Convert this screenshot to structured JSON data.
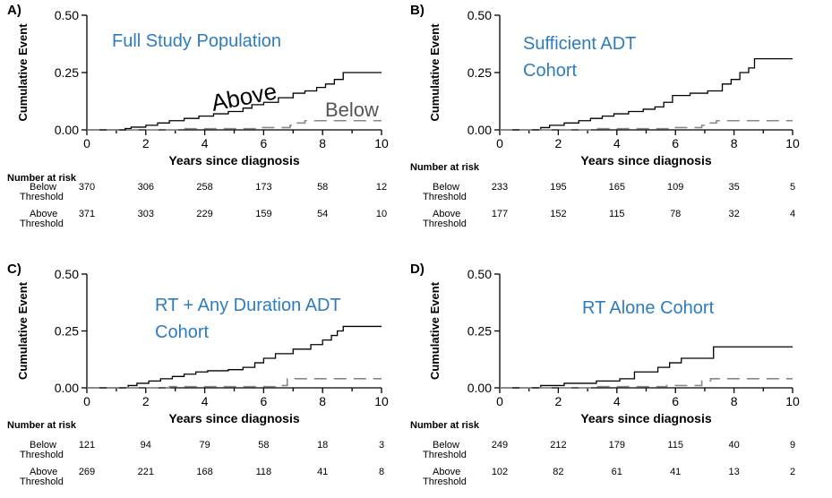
{
  "chart_data": [
    {
      "type": "line",
      "panel": "A)",
      "title": "Full Study Population",
      "xlabel": "Years since diagnosis",
      "ylabel": "Cumulative Event",
      "xlim": [
        0,
        10
      ],
      "ylim": [
        0,
        0.5
      ],
      "xticks": [
        "0",
        "2",
        "4",
        "6",
        "8",
        "10"
      ],
      "yticks": [
        "0.00",
        "0.25",
        "0.50"
      ],
      "annotations": [
        "Above",
        "Below"
      ],
      "series": [
        {
          "name": "Above",
          "x": [
            0,
            1.3,
            1.5,
            2.0,
            2.4,
            2.8,
            3.3,
            3.8,
            4.3,
            4.8,
            5.3,
            5.6,
            6.0,
            6.5,
            7.0,
            7.4,
            7.8,
            8.1,
            8.4,
            8.7,
            10
          ],
          "y": [
            0,
            0.006,
            0.012,
            0.02,
            0.03,
            0.04,
            0.05,
            0.06,
            0.07,
            0.08,
            0.095,
            0.11,
            0.12,
            0.14,
            0.16,
            0.17,
            0.185,
            0.2,
            0.22,
            0.25,
            0.25
          ]
        },
        {
          "name": "Below",
          "x": [
            0,
            3.2,
            5.8,
            6.9,
            7.1,
            7.4,
            10
          ],
          "y": [
            0,
            0.005,
            0.01,
            0.02,
            0.03,
            0.04,
            0.04
          ]
        }
      ],
      "risk_header": "Number at risk",
      "risk_table": [
        {
          "label": [
            "Below",
            "Threshold"
          ],
          "values": [
            "370",
            "306",
            "258",
            "173",
            "58",
            "12"
          ]
        },
        {
          "label": [
            "Above",
            "Threshold"
          ],
          "values": [
            "371",
            "303",
            "229",
            "159",
            "54",
            "10"
          ]
        }
      ]
    },
    {
      "type": "line",
      "panel": "B)",
      "title": "Sufficient ADT Cohort",
      "xlabel": "Years since diagnosis",
      "ylabel": "Cumulative Event",
      "xlim": [
        0,
        10
      ],
      "ylim": [
        0,
        0.5
      ],
      "xticks": [
        "0",
        "2",
        "4",
        "6",
        "8",
        "10"
      ],
      "yticks": [
        "0.00",
        "0.25",
        "0.50"
      ],
      "series": [
        {
          "name": "Above",
          "x": [
            0,
            1.4,
            1.7,
            2.2,
            2.7,
            3.1,
            3.5,
            3.9,
            4.4,
            4.9,
            5.3,
            5.6,
            5.9,
            6.5,
            7.1,
            7.6,
            7.9,
            8.2,
            8.5,
            8.7,
            10
          ],
          "y": [
            0,
            0.01,
            0.02,
            0.03,
            0.04,
            0.05,
            0.06,
            0.07,
            0.08,
            0.09,
            0.1,
            0.12,
            0.15,
            0.16,
            0.17,
            0.2,
            0.22,
            0.25,
            0.27,
            0.31,
            0.31
          ]
        },
        {
          "name": "Below",
          "x": [
            0,
            3.2,
            5.8,
            6.9,
            7.1,
            7.4,
            10
          ],
          "y": [
            0,
            0.005,
            0.01,
            0.02,
            0.03,
            0.04,
            0.04
          ]
        }
      ],
      "risk_header": "Number at risk",
      "risk_table": [
        {
          "label": [
            "Below",
            "Threshold"
          ],
          "values": [
            "233",
            "195",
            "165",
            "109",
            "35",
            "5"
          ]
        },
        {
          "label": [
            "Above",
            "Threshold"
          ],
          "values": [
            "177",
            "152",
            "115",
            "78",
            "32",
            "4"
          ]
        }
      ]
    },
    {
      "type": "line",
      "panel": "C)",
      "title": "RT + Any Duration ADT Cohort",
      "xlabel": "Years since diagnosis",
      "ylabel": "Cumulative Event",
      "xlim": [
        0,
        10
      ],
      "ylim": [
        0,
        0.5
      ],
      "xticks": [
        "0",
        "2",
        "4",
        "6",
        "8",
        "10"
      ],
      "yticks": [
        "0.00",
        "0.25",
        "0.50"
      ],
      "series": [
        {
          "name": "Above",
          "x": [
            0,
            1.4,
            1.7,
            2.1,
            2.5,
            2.9,
            3.3,
            3.7,
            4.1,
            4.8,
            5.3,
            5.7,
            6.0,
            6.4,
            7.0,
            7.6,
            8.0,
            8.3,
            8.5,
            8.7,
            10
          ],
          "y": [
            0,
            0.01,
            0.02,
            0.03,
            0.04,
            0.05,
            0.06,
            0.07,
            0.075,
            0.08,
            0.09,
            0.11,
            0.13,
            0.15,
            0.17,
            0.19,
            0.21,
            0.23,
            0.25,
            0.27,
            0.27
          ]
        },
        {
          "name": "Below",
          "x": [
            0,
            2.8,
            6.6,
            6.8,
            10
          ],
          "y": [
            0,
            0.005,
            0.01,
            0.04,
            0.04
          ]
        }
      ],
      "risk_header": "Number at risk",
      "risk_table": [
        {
          "label": [
            "Below",
            "Threshold"
          ],
          "values": [
            "121",
            "94",
            "79",
            "58",
            "18",
            "3"
          ]
        },
        {
          "label": [
            "Above",
            "Threshold"
          ],
          "values": [
            "269",
            "221",
            "168",
            "118",
            "41",
            "8"
          ]
        }
      ]
    },
    {
      "type": "line",
      "panel": "D)",
      "title": "RT Alone Cohort",
      "xlabel": "Years since diagnosis",
      "ylabel": "Cumulative Event",
      "xlim": [
        0,
        10
      ],
      "ylim": [
        0,
        0.5
      ],
      "xticks": [
        "0",
        "2",
        "4",
        "6",
        "8",
        "10"
      ],
      "yticks": [
        "0.00",
        "0.25",
        "0.50"
      ],
      "series": [
        {
          "name": "Above",
          "x": [
            0,
            1.4,
            2.2,
            3.3,
            4.1,
            4.6,
            5.4,
            5.8,
            6.2,
            7.3,
            10
          ],
          "y": [
            0,
            0.01,
            0.02,
            0.03,
            0.04,
            0.07,
            0.09,
            0.11,
            0.13,
            0.18,
            0.18
          ]
        },
        {
          "name": "Below",
          "x": [
            0,
            3.2,
            5.7,
            6.9,
            7.2,
            10
          ],
          "y": [
            0,
            0.005,
            0.01,
            0.03,
            0.04,
            0.04
          ]
        }
      ],
      "risk_header": "Number at risk",
      "risk_table": [
        {
          "label": [
            "Below",
            "Threshold"
          ],
          "values": [
            "249",
            "212",
            "179",
            "115",
            "40",
            "9"
          ]
        },
        {
          "label": [
            "Above",
            "Threshold"
          ],
          "values": [
            "102",
            "82",
            "61",
            "41",
            "13",
            "2"
          ]
        }
      ]
    }
  ]
}
